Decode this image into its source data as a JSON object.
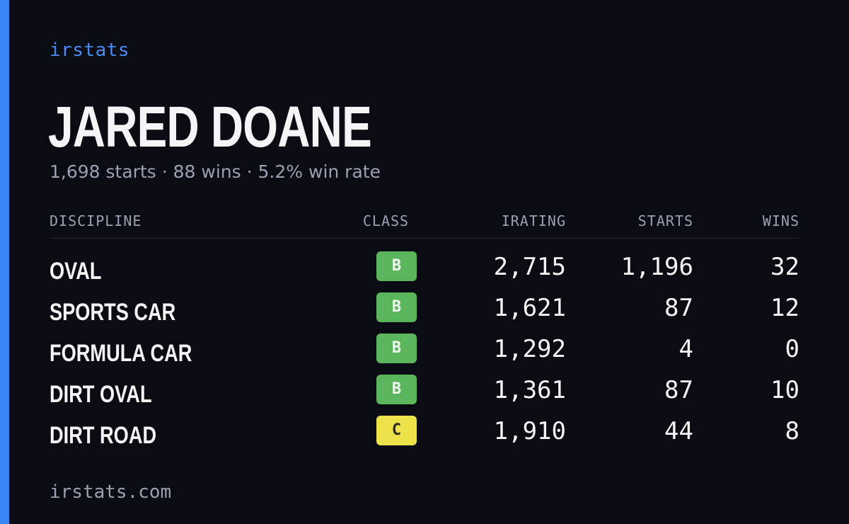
{
  "brand": "irstats",
  "player": {
    "name": "JARED DOANE",
    "starts": "1,698 starts",
    "wins": "88 wins",
    "win_rate": "5.2% win rate",
    "separator": "·"
  },
  "table": {
    "headers": {
      "discipline": "DISCIPLINE",
      "class": "CLASS",
      "irating": "IRATING",
      "starts": "STARTS",
      "wins": "WINS"
    },
    "rows": [
      {
        "discipline": "OVAL",
        "class": "B",
        "irating": "2,715",
        "starts": "1,196",
        "wins": "32"
      },
      {
        "discipline": "SPORTS CAR",
        "class": "B",
        "irating": "1,621",
        "starts": "87",
        "wins": "12"
      },
      {
        "discipline": "FORMULA CAR",
        "class": "B",
        "irating": "1,292",
        "starts": "4",
        "wins": "0"
      },
      {
        "discipline": "DIRT OVAL",
        "class": "B",
        "irating": "1,361",
        "starts": "87",
        "wins": "10"
      },
      {
        "discipline": "DIRT ROAD",
        "class": "C",
        "irating": "1,910",
        "starts": "44",
        "wins": "8"
      }
    ]
  },
  "colors": {
    "accent": "#3b82f6",
    "background": "#0a0c13",
    "class_b": "#5ab55c",
    "class_c": "#ede24a"
  },
  "footer": "irstats.com"
}
